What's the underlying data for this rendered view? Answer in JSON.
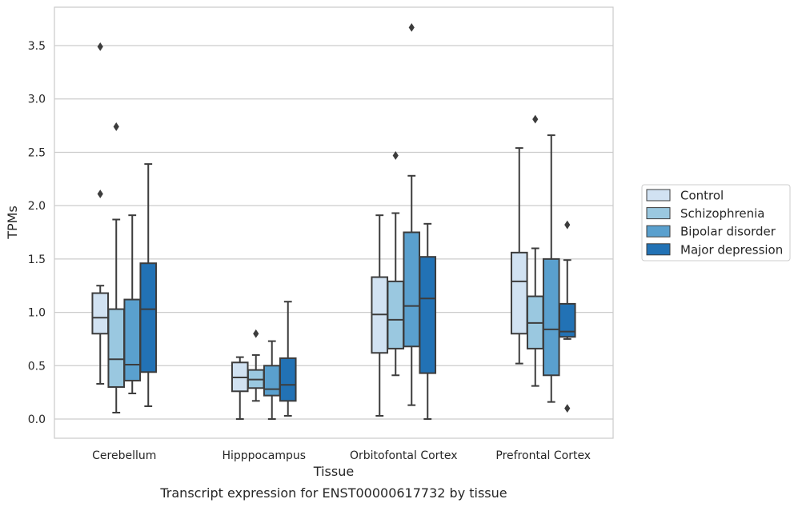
{
  "chart_data": {
    "type": "box",
    "title": "",
    "caption": "Transcript expression for ENST00000617732 by tissue",
    "xlabel": "Tissue",
    "ylabel": "TPMs",
    "ylim": [
      -0.18,
      3.86
    ],
    "yticks": [
      0.0,
      0.5,
      1.0,
      1.5,
      2.0,
      2.5,
      3.0,
      3.5
    ],
    "ytick_labels": [
      "0.0",
      "0.5",
      "1.0",
      "1.5",
      "2.0",
      "2.5",
      "3.0",
      "3.5"
    ],
    "grid": "horizontal",
    "legend_position": "right",
    "categories": [
      "Cerebellum",
      "Hipppocampus",
      "Orbitofontal Cortex",
      "Prefrontal Cortex"
    ],
    "series": [
      {
        "name": "Control",
        "color": "#d1e2f2",
        "boxes": [
          {
            "whislo": 0.33,
            "q1": 0.8,
            "med": 0.95,
            "q3": 1.18,
            "whishi": 1.25,
            "fliers": [
              2.11,
              3.49
            ]
          },
          {
            "whislo": 0.0,
            "q1": 0.26,
            "med": 0.39,
            "q3": 0.53,
            "whishi": 0.58,
            "fliers": []
          },
          {
            "whislo": 0.03,
            "q1": 0.62,
            "med": 0.98,
            "q3": 1.33,
            "whishi": 1.91,
            "fliers": []
          },
          {
            "whislo": 0.52,
            "q1": 0.8,
            "med": 1.29,
            "q3": 1.56,
            "whishi": 2.54,
            "fliers": []
          }
        ]
      },
      {
        "name": "Schizophrenia",
        "color": "#9ac8e0",
        "boxes": [
          {
            "whislo": 0.06,
            "q1": 0.3,
            "med": 0.56,
            "q3": 1.03,
            "whishi": 1.87,
            "fliers": [
              2.74
            ]
          },
          {
            "whislo": 0.17,
            "q1": 0.29,
            "med": 0.37,
            "q3": 0.46,
            "whishi": 0.6,
            "fliers": [
              0.8
            ]
          },
          {
            "whislo": 0.41,
            "q1": 0.66,
            "med": 0.93,
            "q3": 1.29,
            "whishi": 1.93,
            "fliers": [
              2.47
            ]
          },
          {
            "whislo": 0.31,
            "q1": 0.66,
            "med": 0.9,
            "q3": 1.15,
            "whishi": 1.6,
            "fliers": [
              2.81
            ]
          }
        ]
      },
      {
        "name": "Bipolar disorder",
        "color": "#5aa0ce",
        "boxes": [
          {
            "whislo": 0.24,
            "q1": 0.36,
            "med": 0.51,
            "q3": 1.12,
            "whishi": 1.91,
            "fliers": []
          },
          {
            "whislo": 0.0,
            "q1": 0.22,
            "med": 0.28,
            "q3": 0.5,
            "whishi": 0.73,
            "fliers": []
          },
          {
            "whislo": 0.13,
            "q1": 0.68,
            "med": 1.06,
            "q3": 1.75,
            "whishi": 2.28,
            "fliers": [
              3.67
            ]
          },
          {
            "whislo": 0.16,
            "q1": 0.41,
            "med": 0.84,
            "q3": 1.5,
            "whishi": 2.66,
            "fliers": []
          }
        ]
      },
      {
        "name": "Major depression",
        "color": "#2272b5",
        "boxes": [
          {
            "whislo": 0.12,
            "q1": 0.44,
            "med": 1.03,
            "q3": 1.46,
            "whishi": 2.39,
            "fliers": []
          },
          {
            "whislo": 0.03,
            "q1": 0.17,
            "med": 0.32,
            "q3": 0.57,
            "whishi": 1.1,
            "fliers": []
          },
          {
            "whislo": 0.0,
            "q1": 0.43,
            "med": 1.13,
            "q3": 1.52,
            "whishi": 1.83,
            "fliers": []
          },
          {
            "whislo": 0.75,
            "q1": 0.77,
            "med": 0.82,
            "q3": 1.08,
            "whishi": 1.49,
            "fliers": [
              1.82,
              0.1
            ]
          }
        ]
      }
    ]
  }
}
